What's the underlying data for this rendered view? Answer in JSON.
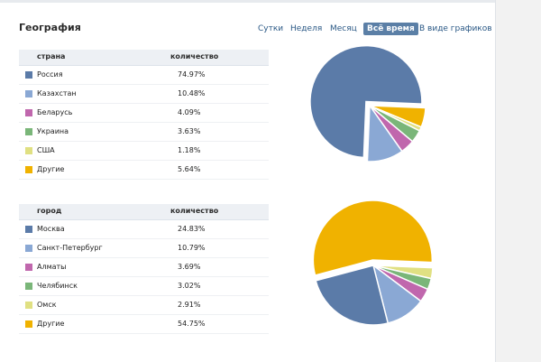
{
  "header": {
    "title": "География",
    "tabs": [
      {
        "label": "Сутки",
        "active": false
      },
      {
        "label": "Неделя",
        "active": false
      },
      {
        "label": "Месяц",
        "active": false
      },
      {
        "label": "Всё время",
        "active": true
      },
      {
        "label": "В виде графиков",
        "active": false
      }
    ]
  },
  "colors": [
    "#5b7ba8",
    "#8aa8d4",
    "#c067ad",
    "#7ab679",
    "#e0e082",
    "#f0b200"
  ],
  "country_table": {
    "col1": "страна",
    "col2": "количество",
    "rows": [
      {
        "name": "Россия",
        "value": "74.97%"
      },
      {
        "name": "Казахстан",
        "value": "10.48%"
      },
      {
        "name": "Беларусь",
        "value": "4.09%"
      },
      {
        "name": "Украина",
        "value": "3.63%"
      },
      {
        "name": "США",
        "value": "1.18%"
      },
      {
        "name": "Другие",
        "value": "5.64%"
      }
    ]
  },
  "city_table": {
    "col1": "город",
    "col2": "количество",
    "rows": [
      {
        "name": "Москва",
        "value": "24.83%"
      },
      {
        "name": "Санкт-Петербург",
        "value": "10.79%"
      },
      {
        "name": "Алматы",
        "value": "3.69%"
      },
      {
        "name": "Челябинск",
        "value": "3.02%"
      },
      {
        "name": "Омск",
        "value": "2.91%"
      },
      {
        "name": "Другие",
        "value": "54.75%"
      }
    ]
  },
  "chart_data": [
    {
      "type": "pie",
      "categories": [
        "Россия",
        "Казахстан",
        "Беларусь",
        "Украина",
        "США",
        "Другие"
      ],
      "values": [
        74.97,
        10.48,
        4.09,
        3.63,
        1.18,
        5.64
      ],
      "exploded_largest": true
    },
    {
      "type": "pie",
      "categories": [
        "Москва",
        "Санкт-Петербург",
        "Алматы",
        "Челябинск",
        "Омск",
        "Другие"
      ],
      "values": [
        24.83,
        10.79,
        3.69,
        3.02,
        2.91,
        54.75
      ],
      "exploded_largest": true
    }
  ]
}
